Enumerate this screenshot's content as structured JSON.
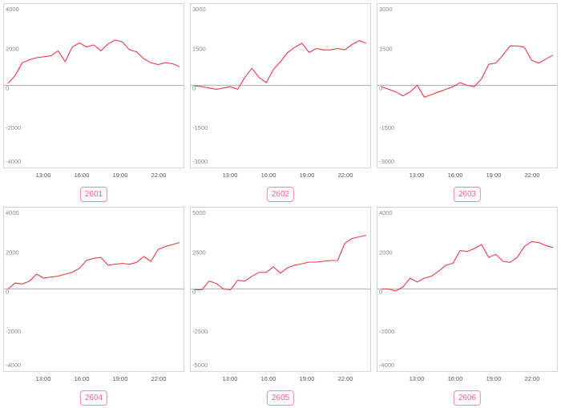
{
  "theme": {
    "line_color": "#ee3b45",
    "badge_color": "#f06292",
    "frame_color": "#d6d6d6"
  },
  "badges": [
    "2601",
    "2602",
    "2603",
    "2604",
    "2605",
    "2606"
  ],
  "chart_data": [
    {
      "type": "line",
      "code": "2601",
      "x_ticks": [
        "13:00",
        "16:00",
        "19:00",
        "22:00"
      ],
      "y_ticks": [
        "4000",
        "2000",
        "0",
        "-2000",
        "-4000"
      ],
      "ylim": [
        -4000,
        4000
      ],
      "grid": false,
      "x": [
        0,
        1,
        2,
        3,
        4,
        5,
        6,
        7,
        8,
        9,
        10,
        11,
        12,
        13,
        14,
        15,
        16,
        17,
        18,
        19,
        20,
        21,
        22,
        23,
        24
      ],
      "values": [
        100,
        500,
        1150,
        1300,
        1400,
        1450,
        1500,
        1750,
        1200,
        1950,
        2150,
        1950,
        2050,
        1750,
        2100,
        2300,
        2200,
        1800,
        1700,
        1350,
        1150,
        1050,
        1150,
        1100,
        950
      ]
    },
    {
      "type": "line",
      "code": "2602",
      "x_ticks": [
        "13:00",
        "16:00",
        "19:00",
        "22:00"
      ],
      "y_ticks": [
        "3000",
        "1500",
        "0",
        "-1500",
        "-3000"
      ],
      "ylim": [
        -3000,
        3000
      ],
      "grid": false,
      "x": [
        0,
        1,
        2,
        3,
        4,
        5,
        6,
        7,
        8,
        9,
        10,
        11,
        12,
        13,
        14,
        15,
        16,
        17,
        18,
        19,
        20,
        21,
        22,
        23,
        24
      ],
      "values": [
        -20,
        -50,
        -100,
        -150,
        -100,
        -50,
        -150,
        300,
        650,
        300,
        100,
        600,
        900,
        1250,
        1450,
        1600,
        1250,
        1400,
        1350,
        1350,
        1400,
        1350,
        1550,
        1700,
        1600
      ]
    },
    {
      "type": "line",
      "code": "2603",
      "x_ticks": [
        "13:00",
        "16:00",
        "19:00",
        "22:00"
      ],
      "y_ticks": [
        "3000",
        "1500",
        "0",
        "-1500",
        "-3000"
      ],
      "ylim": [
        -3000,
        3000
      ],
      "grid": false,
      "x": [
        0,
        1,
        2,
        3,
        4,
        5,
        6,
        7,
        8,
        9,
        10,
        11,
        12,
        13,
        14,
        15,
        16,
        17,
        18,
        19,
        20,
        21,
        22,
        23,
        24
      ],
      "values": [
        -50,
        -150,
        -250,
        -400,
        -250,
        0,
        -450,
        -350,
        -250,
        -150,
        -50,
        100,
        0,
        -50,
        250,
        800,
        850,
        1150,
        1500,
        1500,
        1450,
        950,
        850,
        1000,
        1150
      ]
    },
    {
      "type": "line",
      "code": "2604",
      "x_ticks": [
        "13:00",
        "16:00",
        "19:00",
        "22:00"
      ],
      "y_ticks": [
        "4000",
        "2000",
        "0",
        "-2000",
        "-4000"
      ],
      "ylim": [
        -4000,
        4000
      ],
      "grid": false,
      "x": [
        0,
        1,
        2,
        3,
        4,
        5,
        6,
        7,
        8,
        9,
        10,
        11,
        12,
        13,
        14,
        15,
        16,
        17,
        18,
        19,
        20,
        21,
        22,
        23,
        24
      ],
      "values": [
        0,
        300,
        250,
        400,
        750,
        550,
        600,
        650,
        750,
        850,
        1050,
        1450,
        1550,
        1600,
        1200,
        1250,
        1300,
        1250,
        1350,
        1650,
        1400,
        2000,
        2150,
        2250,
        2350
      ]
    },
    {
      "type": "line",
      "code": "2605",
      "x_ticks": [
        "13:00",
        "16:00",
        "19:00",
        "22:00"
      ],
      "y_ticks": [
        "5000",
        "2500",
        "0",
        "-2500",
        "-5000"
      ],
      "ylim": [
        -5000,
        5000
      ],
      "grid": false,
      "x": [
        0,
        1,
        2,
        3,
        4,
        5,
        6,
        7,
        8,
        9,
        10,
        11,
        12,
        13,
        14,
        15,
        16,
        17,
        18,
        19,
        20,
        21,
        22,
        23,
        24
      ],
      "values": [
        -50,
        -50,
        500,
        350,
        0,
        -50,
        550,
        500,
        800,
        1050,
        1050,
        1400,
        1000,
        1350,
        1500,
        1600,
        1700,
        1700,
        1750,
        1800,
        1800,
        2900,
        3200,
        3300,
        3400
      ]
    },
    {
      "type": "line",
      "code": "2606",
      "x_ticks": [
        "13:00",
        "16:00",
        "19:00",
        "22:00"
      ],
      "y_ticks": [
        "4000",
        "2000",
        "0",
        "-2000",
        "-4000"
      ],
      "ylim": [
        -4000,
        4000
      ],
      "grid": false,
      "x": [
        0,
        1,
        2,
        3,
        4,
        5,
        6,
        7,
        8,
        9,
        10,
        11,
        12,
        13,
        14,
        15,
        16,
        17,
        18,
        19,
        20,
        21,
        22,
        23,
        24
      ],
      "values": [
        0,
        0,
        -100,
        100,
        550,
        350,
        550,
        650,
        900,
        1200,
        1300,
        1950,
        1900,
        2050,
        2250,
        1600,
        1750,
        1400,
        1350,
        1600,
        2150,
        2400,
        2350,
        2200,
        2100
      ]
    }
  ]
}
